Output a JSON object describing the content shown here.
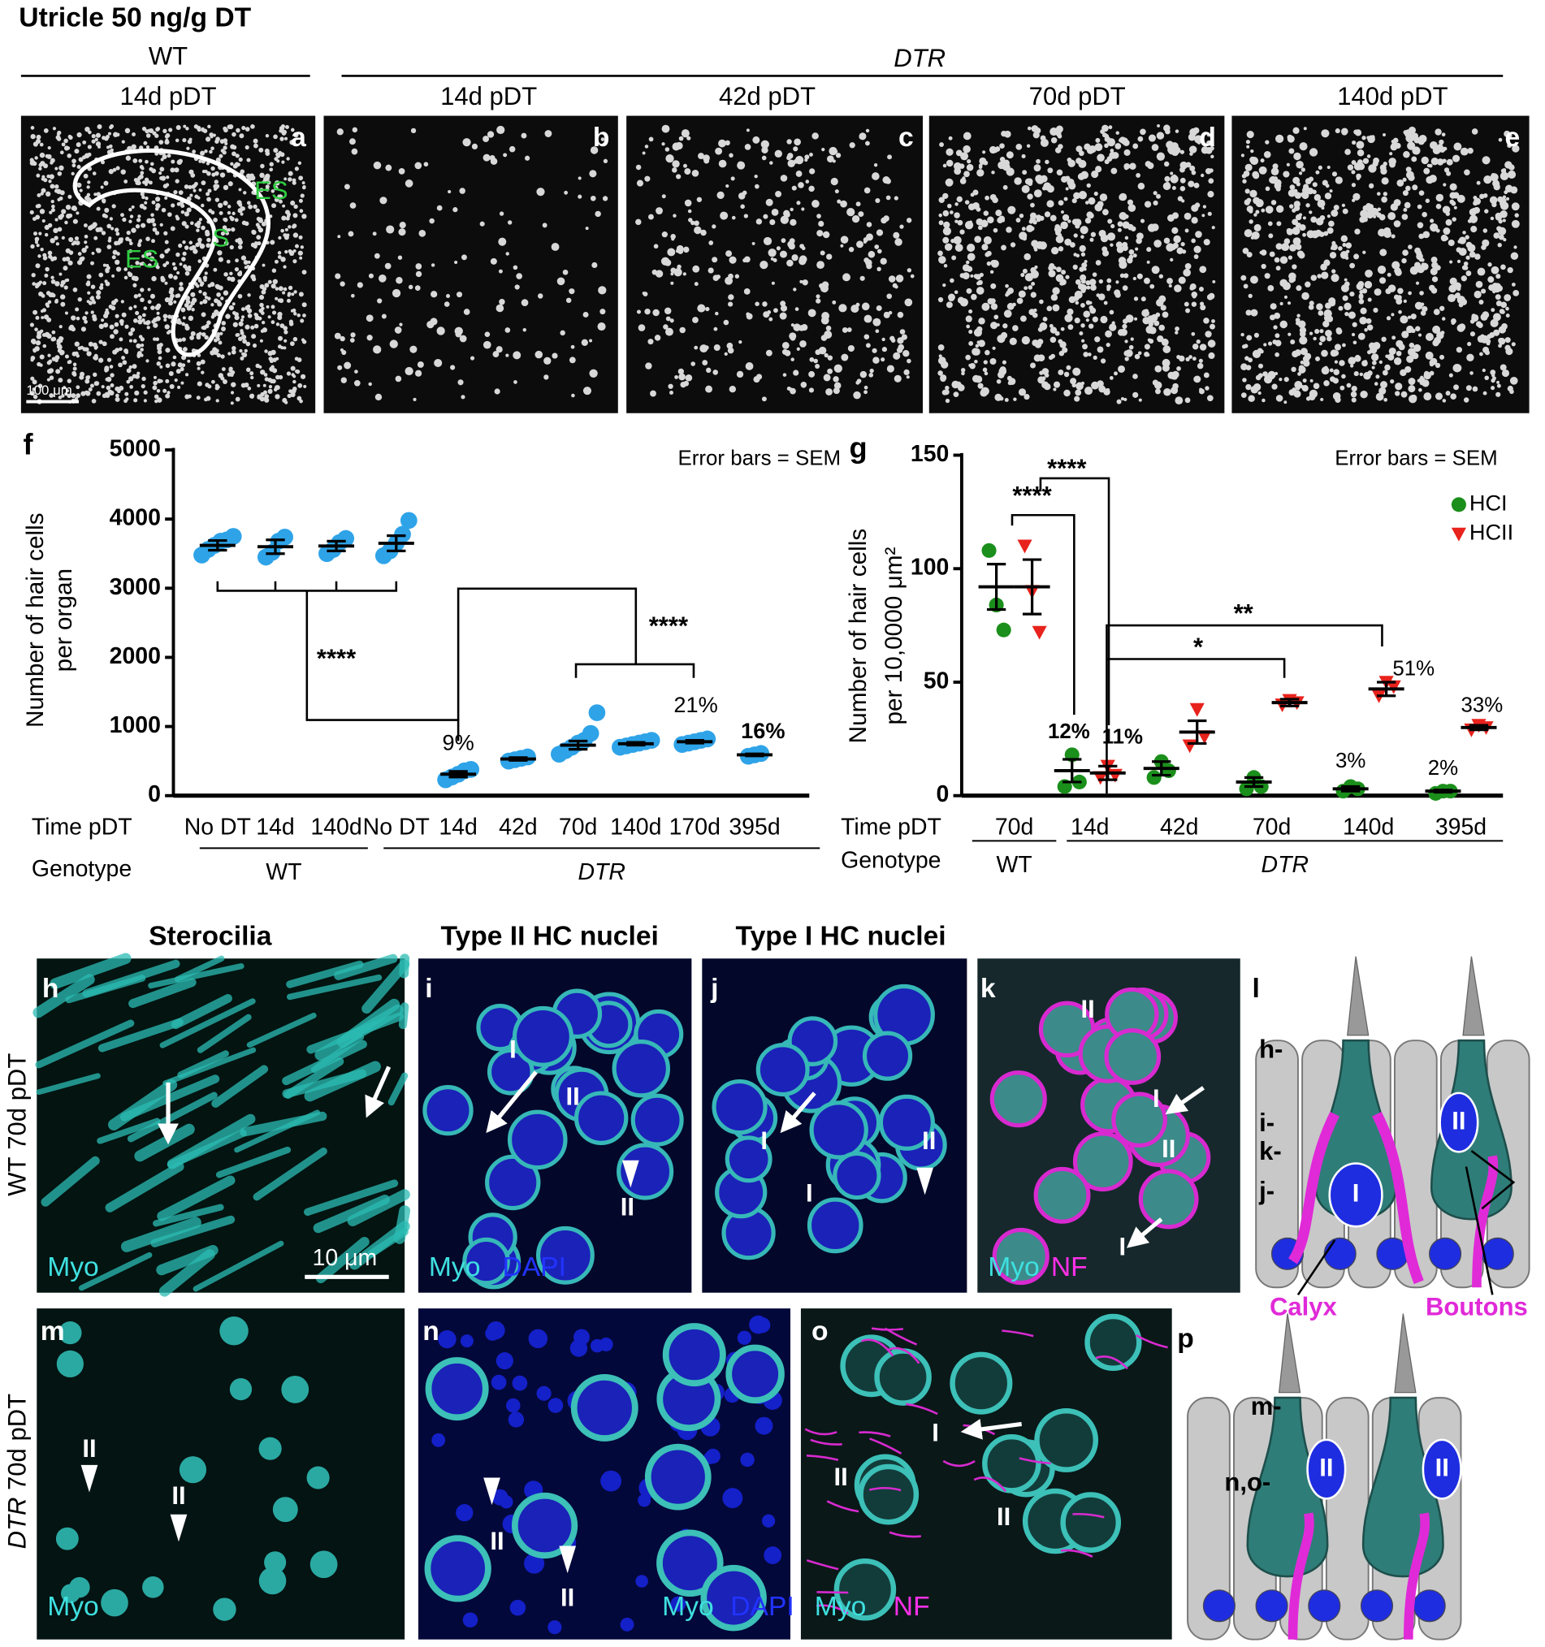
{
  "header": {
    "title": "Utricle 50 ng/g DT",
    "wt": "WT",
    "dtr": "DTR",
    "columns": [
      "14d pDT",
      "14d pDT",
      "42d pDT",
      "70d pDT",
      "140d pDT"
    ]
  },
  "panels": {
    "a": {
      "letter": "a",
      "regions": [
        "ES",
        "S",
        "ES"
      ],
      "scale": "100 μm"
    },
    "b": {
      "letter": "b"
    },
    "c": {
      "letter": "c"
    },
    "d": {
      "letter": "d"
    },
    "e": {
      "letter": "e"
    }
  },
  "chart_data": [
    {
      "type": "dot",
      "panel": "f",
      "annotation": "Error bars = SEM",
      "ylabel": [
        "Number of hair cells",
        "per organ"
      ],
      "axis_rows": [
        "Time pDT",
        "Genotype"
      ],
      "groups": [
        "WT",
        "DTR"
      ],
      "categories": [
        "No DT",
        "14d",
        "140d",
        "No DT",
        "14d",
        "42d",
        "70d",
        "140d",
        "170d",
        "395d"
      ],
      "ylim": [
        0,
        5000
      ],
      "yticks": [
        0,
        1000,
        2000,
        3000,
        4000,
        5000
      ],
      "significance": [
        "****",
        "****"
      ],
      "percent_labels": [
        "9%",
        "21%",
        "16%"
      ],
      "series": [
        {
          "name": "Hair cells",
          "color": "#2ea3e8",
          "marker": "circle",
          "values": [
            3620,
            3600,
            3610,
            3650,
            310,
            530,
            730,
            750,
            780,
            590
          ],
          "errors": [
            70,
            100,
            70,
            110,
            40,
            20,
            60,
            20,
            20,
            15
          ],
          "points": [
            [
              3480,
              3560,
              3620,
              3680,
              3700,
              3750
            ],
            [
              3450,
              3520,
              3680,
              3740
            ],
            [
              3500,
              3560,
              3660,
              3720
            ],
            [
              3470,
              3540,
              3650,
              3780,
              3980
            ],
            [
              230,
              270,
              310,
              360,
              380
            ],
            [
              500,
              520,
              540,
              560
            ],
            [
              600,
              650,
              700,
              760,
              800,
              900,
              1200
            ],
            [
              700,
              720,
              740,
              760,
              780,
              800
            ],
            [
              740,
              760,
              780,
              800,
              820
            ],
            [
              570,
              590,
              610
            ]
          ]
        }
      ]
    },
    {
      "type": "dot",
      "panel": "g",
      "annotation": "Error bars = SEM",
      "ylabel": [
        "Number of hair cells",
        "per 10,0000 μm²"
      ],
      "axis_rows": [
        "Time pDT",
        "Genotype"
      ],
      "groups": [
        "WT",
        "DTR"
      ],
      "categories": [
        "70d",
        "14d",
        "42d",
        "70d",
        "140d",
        "395d"
      ],
      "ylim": [
        0,
        150
      ],
      "yticks": [
        0,
        50,
        100,
        150
      ],
      "legend": true,
      "significance": [
        "****",
        "****",
        "**",
        "*"
      ],
      "percent_labels": [
        "12%",
        "11%",
        "3%",
        "51%",
        "2%",
        "33%"
      ],
      "series": [
        {
          "name": "HCI",
          "color": "#1b8f1b",
          "marker": "circle",
          "values": [
            92,
            11,
            12,
            6,
            3,
            2
          ],
          "errors": [
            10,
            5,
            3,
            2,
            1,
            0.5
          ],
          "points": [
            [
              108,
              84,
              73
            ],
            [
              4,
              18,
              6
            ],
            [
              8,
              15,
              11
            ],
            [
              3,
              8,
              4
            ],
            [
              2,
              4,
              3
            ],
            [
              1,
              2,
              2
            ]
          ]
        },
        {
          "name": "HCII",
          "color": "#e8221c",
          "marker": "triangle",
          "values": [
            92,
            10,
            28,
            41,
            47,
            30
          ],
          "errors": [
            12,
            3,
            5,
            1.5,
            3,
            1
          ],
          "points": [
            [
              110,
              90,
              72
            ],
            [
              8,
              13,
              9
            ],
            [
              22,
              38,
              26
            ],
            [
              40,
              42,
              41
            ],
            [
              44,
              50,
              48
            ],
            [
              29,
              31,
              30
            ]
          ]
        }
      ]
    }
  ],
  "bottom": {
    "headers": [
      "Sterocilia",
      "Type II HC nuclei",
      "Type I HC nuclei"
    ],
    "rows": [
      {
        "genotype": "WT",
        "time": "70d pDT"
      },
      {
        "genotype": "DTR",
        "time": "70d pDT"
      }
    ],
    "panels": {
      "h": {
        "letter": "h",
        "stain": [
          "Myo"
        ],
        "scale": "10 μm"
      },
      "i": {
        "letter": "i",
        "cells": [
          "I",
          "II",
          "II"
        ],
        "stain": [
          "Myo",
          "DAPI"
        ]
      },
      "j": {
        "letter": "j",
        "cells": [
          "I",
          "I",
          "II"
        ]
      },
      "k": {
        "letter": "k",
        "cells": [
          "II",
          "I",
          "II",
          "I"
        ],
        "stain": [
          "Myo",
          "NF"
        ]
      },
      "l": {
        "letter": "l",
        "levels": [
          "h-",
          "i-",
          "k-",
          "j-"
        ],
        "cells": [
          "I",
          "II"
        ],
        "terminals": [
          "Calyx",
          "Boutons"
        ]
      },
      "m": {
        "letter": "m",
        "cells": [
          "II",
          "II"
        ],
        "stain": [
          "Myo"
        ]
      },
      "n": {
        "letter": "n",
        "cells": [
          "II",
          "II"
        ],
        "stain": [
          "Myo",
          "DAPI"
        ]
      },
      "o": {
        "letter": "o",
        "cells": [
          "I",
          "II",
          "II"
        ],
        "stain": [
          "Myo",
          "NF"
        ]
      },
      "p": {
        "letter": "p",
        "levels": [
          "m-",
          "n,o-"
        ],
        "cells": [
          "II",
          "II"
        ]
      }
    }
  }
}
